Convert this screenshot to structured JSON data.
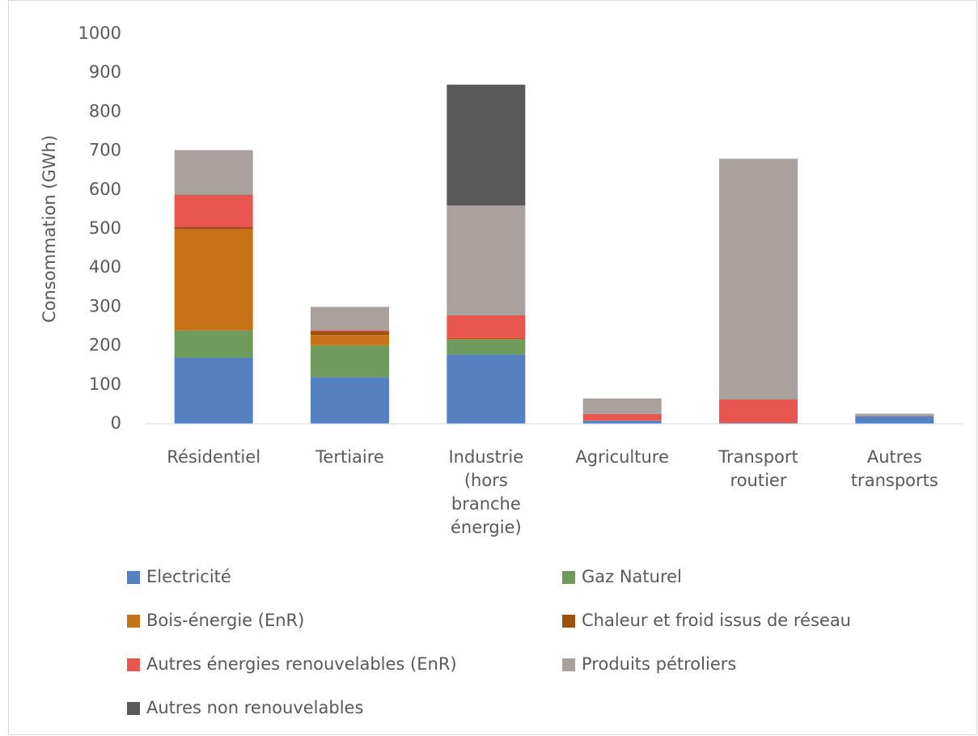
{
  "chart_data": {
    "type": "stacked_bar",
    "y_label": "Consommation (GWh)",
    "categories": [
      "Résidentiel",
      "Tertiaire",
      "Industrie (hors branche énergie)",
      "Agriculture",
      "Transport routier",
      "Autres transports"
    ],
    "series": [
      {
        "name": "Electricité",
        "color": "#5580c2",
        "values": [
          170,
          120,
          178,
          8,
          3,
          20
        ]
      },
      {
        "name": "Gaz Naturel",
        "color": "#6e9a5c",
        "values": [
          70,
          82,
          38,
          2,
          0,
          0
        ]
      },
      {
        "name": "Bois-énergie (EnR)",
        "color": "#c87218",
        "values": [
          260,
          26,
          2,
          0,
          0,
          0
        ]
      },
      {
        "name": "Chaleur et froid issus de réseau",
        "color": "#a0500d",
        "values": [
          5,
          10,
          2,
          0,
          0,
          0
        ]
      },
      {
        "name": "Autres énergies renouvelables (EnR)",
        "color": "#e9554f",
        "values": [
          83,
          2,
          58,
          15,
          60,
          0
        ]
      },
      {
        "name": "Produits pétroliers",
        "color": "#aaa19e",
        "values": [
          114,
          60,
          282,
          40,
          617,
          6
        ]
      },
      {
        "name": "Autres non renouvelables",
        "color": "#595959",
        "values": [
          0,
          0,
          310,
          0,
          0,
          0
        ]
      }
    ],
    "ylim": [
      0,
      1000
    ],
    "yticks": [
      0,
      100,
      200,
      300,
      400,
      500,
      600,
      700,
      800,
      900,
      1000
    ],
    "legend": "bottom"
  }
}
